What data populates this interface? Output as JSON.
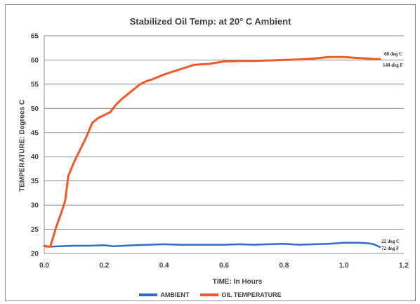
{
  "chart_data": {
    "type": "line",
    "title": "Stabilized Oil Temp: at 20° C Ambient",
    "xlabel": "TIME: In Hours",
    "ylabel": "TEMPERATURE: Degrees C",
    "xlim": [
      0,
      1.2
    ],
    "ylim": [
      20,
      65
    ],
    "xticks": [
      "0.0",
      "0.2",
      "0.4",
      "0.6",
      "0.8",
      "1.0",
      "1.2"
    ],
    "yticks": [
      "20",
      "25",
      "30",
      "35",
      "40",
      "45",
      "50",
      "55",
      "60",
      "65"
    ],
    "grid": "horizontal",
    "legend_position": "bottom",
    "series": [
      {
        "name": "AMBIENT",
        "color": "#2e6cc6",
        "x": [
          0.0,
          0.02,
          0.05,
          0.1,
          0.15,
          0.2,
          0.23,
          0.3,
          0.35,
          0.4,
          0.45,
          0.5,
          0.55,
          0.6,
          0.65,
          0.7,
          0.75,
          0.8,
          0.85,
          0.9,
          0.95,
          1.0,
          1.05,
          1.08,
          1.1,
          1.12
        ],
        "y": [
          21.6,
          21.4,
          21.5,
          21.6,
          21.6,
          21.7,
          21.5,
          21.7,
          21.8,
          21.9,
          21.8,
          21.8,
          21.8,
          21.8,
          21.9,
          21.8,
          21.9,
          22.0,
          21.8,
          21.9,
          22.0,
          22.2,
          22.2,
          22.1,
          21.9,
          21.3
        ]
      },
      {
        "name": "OIL TEMPERATURE",
        "color": "#f05a28",
        "x": [
          0.0,
          0.02,
          0.04,
          0.06,
          0.07,
          0.08,
          0.09,
          0.1,
          0.12,
          0.14,
          0.16,
          0.18,
          0.2,
          0.22,
          0.24,
          0.26,
          0.28,
          0.3,
          0.32,
          0.34,
          0.36,
          0.38,
          0.4,
          0.45,
          0.5,
          0.55,
          0.6,
          0.65,
          0.7,
          0.75,
          0.8,
          0.85,
          0.9,
          0.95,
          1.0,
          1.05,
          1.08,
          1.1,
          1.12
        ],
        "y": [
          21.5,
          21.4,
          25.5,
          29.0,
          31.0,
          36.0,
          37.5,
          39.0,
          41.5,
          44.0,
          47.0,
          48.0,
          48.6,
          49.2,
          50.8,
          52.0,
          53.0,
          54.0,
          55.0,
          55.6,
          56.0,
          56.5,
          57.0,
          58.0,
          59.0,
          59.2,
          59.7,
          59.8,
          59.8,
          59.9,
          60.0,
          60.1,
          60.3,
          60.6,
          60.6,
          60.4,
          60.3,
          60.2,
          60.2
        ]
      }
    ],
    "annotations": {
      "oil_c": "60 deg C",
      "oil_f": "140 deg F",
      "ambient_c": "22 deg C",
      "ambient_f": "72 deg F"
    }
  },
  "legend": {
    "ambient_label": "AMBIENT",
    "oil_label": "OIL TEMPERATURE"
  }
}
